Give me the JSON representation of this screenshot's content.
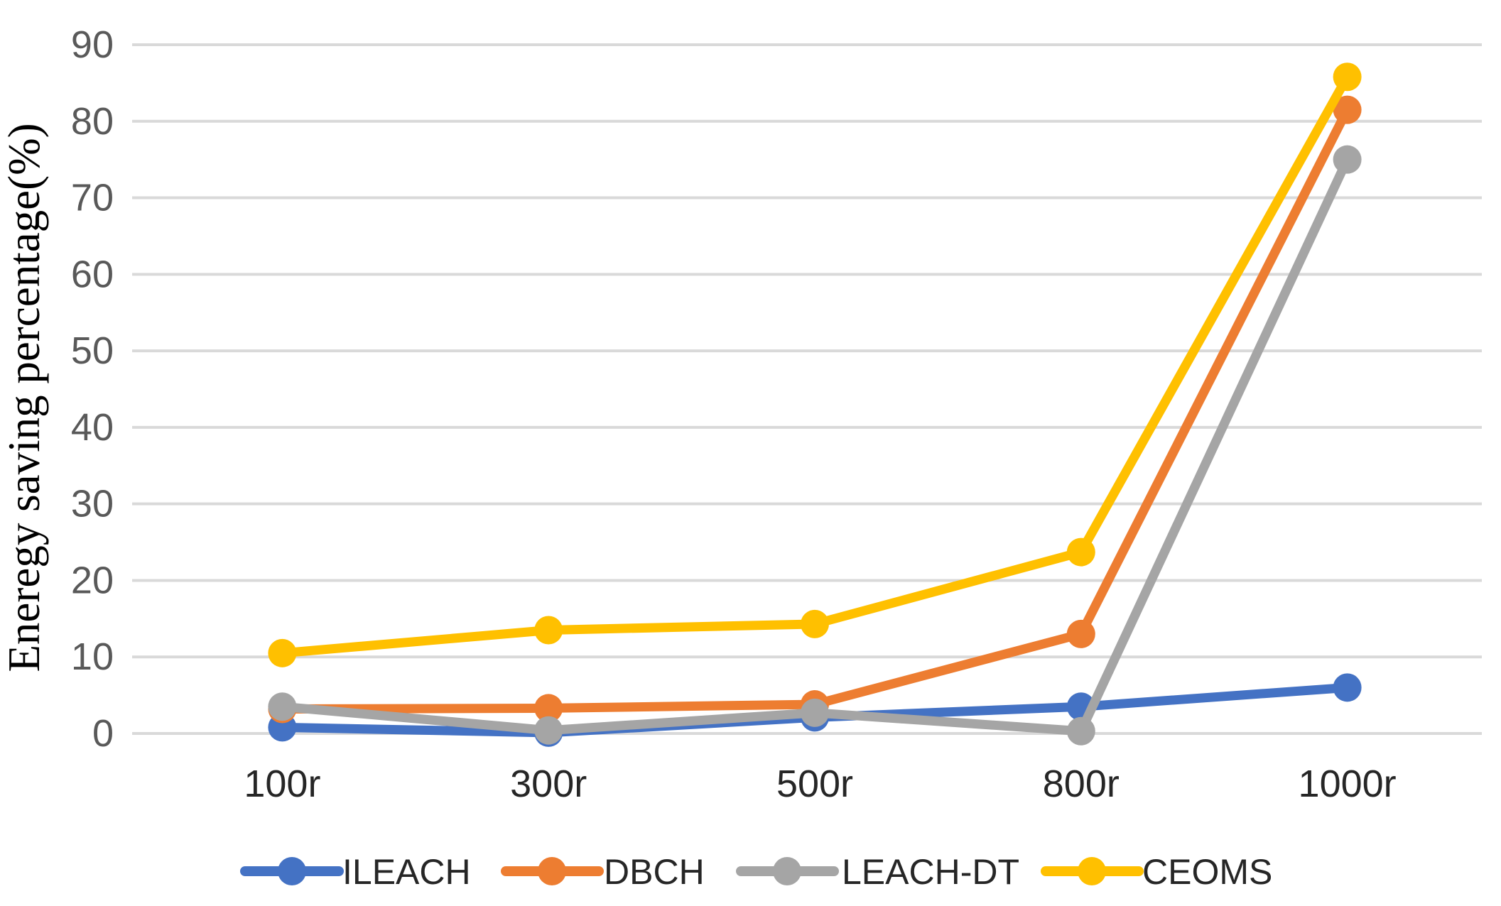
{
  "chart_data": {
    "type": "line",
    "title": "",
    "xlabel": "",
    "ylabel": "Eneregy saving percentage(%)",
    "categories": [
      "100r",
      "300r",
      "500r",
      "800r",
      "1000r"
    ],
    "series": [
      {
        "name": "ILEACH",
        "color": "#4472C4",
        "values": [
          0.8,
          0.1,
          2.1,
          3.5,
          6.0
        ]
      },
      {
        "name": "DBCH",
        "color": "#ED7D31",
        "values": [
          3.2,
          3.3,
          3.8,
          13.0,
          81.5
        ]
      },
      {
        "name": "LEACH-DT",
        "color": "#A5A5A5",
        "values": [
          3.5,
          0.4,
          2.7,
          0.3,
          75.0
        ]
      },
      {
        "name": "CEOMS",
        "color": "#FFC000",
        "values": [
          10.5,
          13.5,
          14.3,
          23.7,
          85.8
        ]
      }
    ],
    "yticks": [
      0,
      10,
      20,
      30,
      40,
      50,
      60,
      70,
      80,
      90
    ],
    "ylim": [
      0,
      90
    ],
    "grid": true,
    "gridline_color": "#D9D9D9",
    "tick_label_color": "#595959",
    "category_label_color": "#262626",
    "legend_position": "bottom",
    "legend_labels": [
      "ILEACH",
      "DBCH",
      "LEACH-DT",
      "CEOMS"
    ]
  }
}
